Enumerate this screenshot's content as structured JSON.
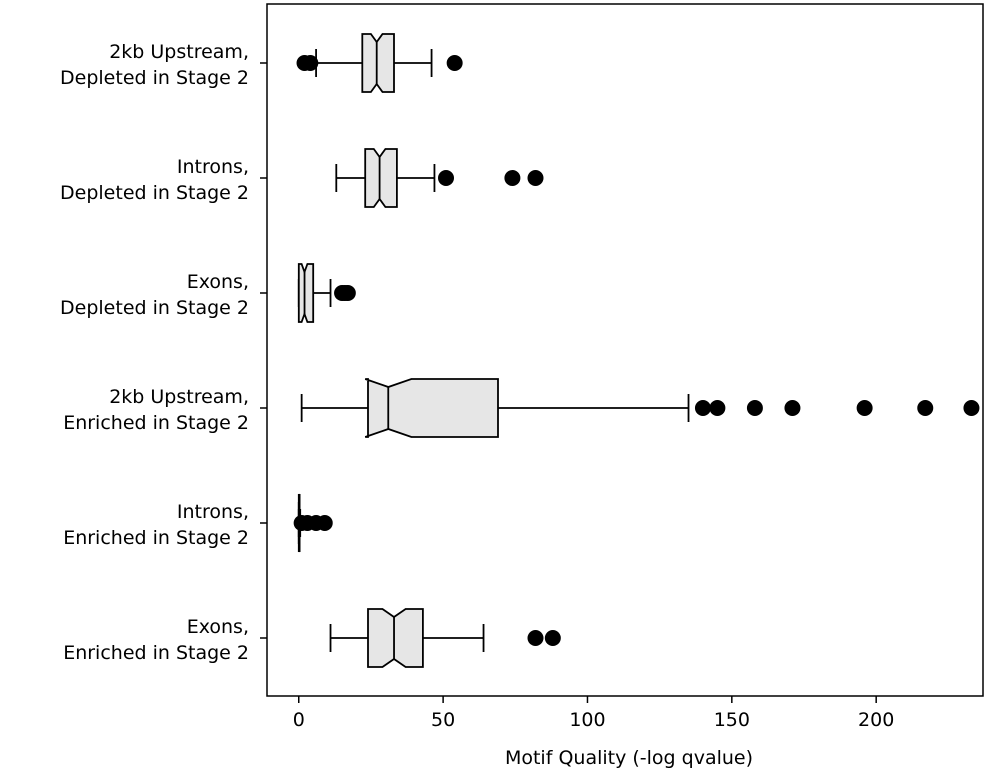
{
  "chart_data": {
    "type": "box",
    "orientation": "horizontal",
    "notched": true,
    "xlabel": "Motif Quality (-log qvalue)",
    "xlim": [
      -11,
      237
    ],
    "xticks": [
      {
        "value": 0,
        "label": "0"
      },
      {
        "value": 50,
        "label": "50"
      },
      {
        "value": 100,
        "label": "100"
      },
      {
        "value": 150,
        "label": "150"
      },
      {
        "value": 200,
        "label": "200"
      }
    ],
    "box_fill": "#e6e6e6",
    "line_color": "#000000",
    "categories": [
      {
        "label_lines": [
          "2kb Upstream,",
          "Depleted in Stage 2"
        ],
        "whisker_low": 6,
        "q1": 22,
        "median": 27,
        "q3": 33,
        "whisker_high": 46,
        "notch_low": 25,
        "notch_high": 29,
        "outliers": [
          2,
          4,
          54
        ]
      },
      {
        "label_lines": [
          "Introns,",
          "Depleted in Stage 2"
        ],
        "whisker_low": 13,
        "q1": 23,
        "median": 28,
        "q3": 34,
        "whisker_high": 47,
        "notch_low": 26,
        "notch_high": 30,
        "outliers": [
          51,
          74,
          82
        ]
      },
      {
        "label_lines": [
          "Exons,",
          "Depleted in Stage 2"
        ],
        "whisker_low": 0,
        "q1": 0,
        "median": 2,
        "q3": 5,
        "whisker_high": 11,
        "notch_low": 1,
        "notch_high": 3,
        "outliers": [
          15,
          16,
          17
        ]
      },
      {
        "label_lines": [
          "2kb Upstream,",
          "Enriched in Stage 2"
        ],
        "whisker_low": 1,
        "q1": 24,
        "median": 31,
        "q3": 69,
        "whisker_high": 135,
        "notch_low": 23,
        "notch_high": 39,
        "outliers": [
          140,
          145,
          158,
          171,
          196,
          217,
          233
        ]
      },
      {
        "label_lines": [
          "Introns,",
          "Enriched in Stage 2"
        ],
        "whisker_low": 0,
        "q1": 0,
        "median": 0,
        "q3": 0.3,
        "whisker_high": 0.5,
        "notch_low": 0,
        "notch_high": 0.3,
        "outliers": [
          1,
          3,
          6,
          9
        ]
      },
      {
        "label_lines": [
          "Exons,",
          "Enriched in Stage 2"
        ],
        "whisker_low": 11,
        "q1": 24,
        "median": 33,
        "q3": 43,
        "whisker_high": 64,
        "notch_low": 29,
        "notch_high": 37,
        "outliers": [
          82,
          88
        ]
      }
    ]
  }
}
